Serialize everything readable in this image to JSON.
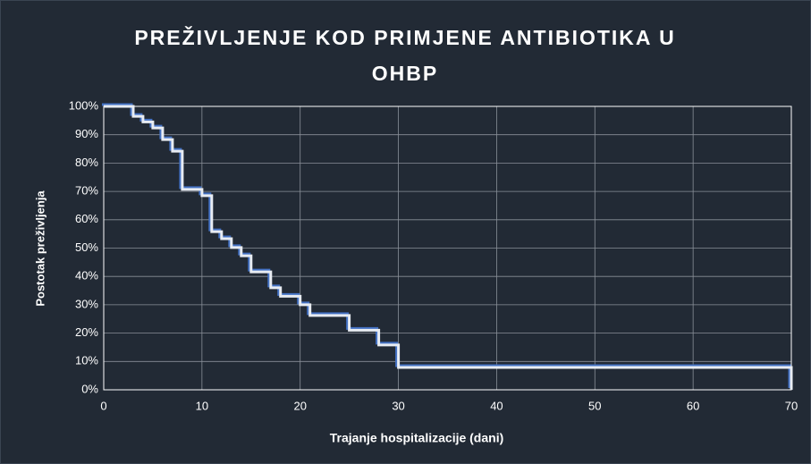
{
  "chart_data": {
    "type": "line",
    "step": "post",
    "title": "PREŽIVLJENJE KOD PRIMJENE ANTIBIOTIKA U OHBP",
    "xlabel": "Trajanje hospitalizacije (dani)",
    "ylabel": "Postotak preživljenja",
    "x": [
      0,
      3,
      4,
      5,
      6,
      7,
      8,
      10,
      11,
      12,
      13,
      14,
      15,
      17,
      18,
      20,
      21,
      25,
      28,
      30,
      70
    ],
    "series": [
      {
        "color": "#e8ecf2",
        "shadow_color": "#4472c4",
        "values": [
          100,
          96.5,
          94.5,
          92.4,
          88.3,
          84.2,
          70.7,
          68.5,
          55.8,
          53.3,
          50.2,
          47.3,
          41.6,
          36,
          33,
          30,
          26.2,
          21,
          15.8,
          7.9,
          0
        ]
      }
    ],
    "xlim": [
      0,
      70
    ],
    "xticks": [
      0,
      10,
      20,
      30,
      40,
      50,
      60,
      70
    ],
    "ylim": [
      0,
      100
    ],
    "yticks": [
      {
        "value": 0,
        "label": "0%"
      },
      {
        "value": 10,
        "label": "10%"
      },
      {
        "value": 20,
        "label": "20%"
      },
      {
        "value": 30,
        "label": "30%"
      },
      {
        "value": 40,
        "label": "40%"
      },
      {
        "value": 50,
        "label": "50%"
      },
      {
        "value": 60,
        "label": "60%"
      },
      {
        "value": 70,
        "label": "70%"
      },
      {
        "value": 80,
        "label": "80%"
      },
      {
        "value": 90,
        "label": "90%"
      },
      {
        "value": 100,
        "label": "100%"
      }
    ],
    "grid": true
  }
}
